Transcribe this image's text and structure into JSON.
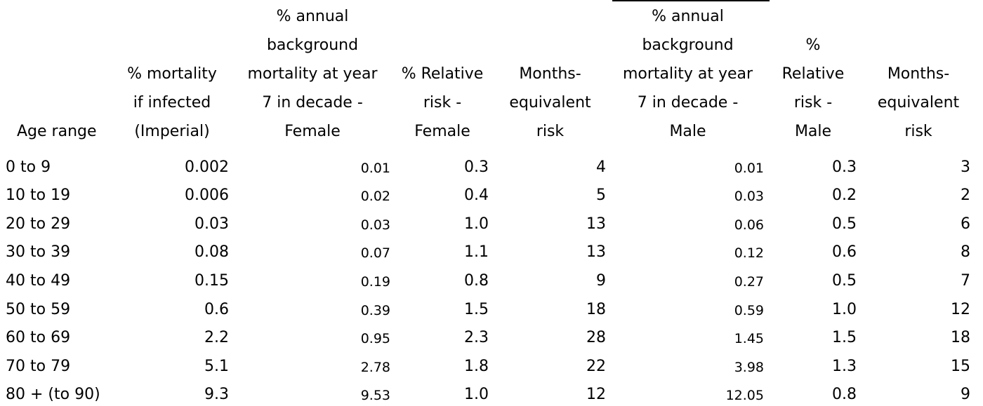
{
  "table": {
    "headers": [
      [
        "Age range"
      ],
      [
        "% mortality",
        "if infected",
        "(Imperial)"
      ],
      [
        "% annual",
        "background",
        "mortality at year",
        "7 in decade -",
        "Female"
      ],
      [
        "% Relative",
        "risk -",
        "Female"
      ],
      [
        "Months-",
        "equivalent",
        "risk"
      ],
      [
        "% annual",
        "background",
        "mortality at year",
        "7 in decade -",
        "Male"
      ],
      [
        "%",
        "Relative",
        "risk -",
        "Male"
      ],
      [
        "Months-",
        "equivalent",
        "risk"
      ]
    ],
    "rows": [
      [
        "0 to 9",
        "0.002",
        "0.01",
        "0.3",
        "4",
        "0.01",
        "0.3",
        "3"
      ],
      [
        "10 to 19",
        "0.006",
        "0.02",
        "0.4",
        "5",
        "0.03",
        "0.2",
        "2"
      ],
      [
        "20 to 29",
        "0.03",
        "0.03",
        "1.0",
        "13",
        "0.06",
        "0.5",
        "6"
      ],
      [
        "30 to 39",
        "0.08",
        "0.07",
        "1.1",
        "13",
        "0.12",
        "0.6",
        "8"
      ],
      [
        "40 to 49",
        "0.15",
        "0.19",
        "0.8",
        "9",
        "0.27",
        "0.5",
        "7"
      ],
      [
        "50 to 59",
        "0.6",
        "0.39",
        "1.5",
        "18",
        "0.59",
        "1.0",
        "12"
      ],
      [
        "60 to 69",
        "2.2",
        "0.95",
        "2.3",
        "28",
        "1.45",
        "1.5",
        "18"
      ],
      [
        "70 to 79",
        "5.1",
        "2.78",
        "1.8",
        "22",
        "3.98",
        "1.3",
        "15"
      ],
      [
        "80 + (to 90)",
        "9.3",
        "9.53",
        "1.0",
        "12",
        "12.05",
        "0.8",
        "9"
      ]
    ]
  }
}
